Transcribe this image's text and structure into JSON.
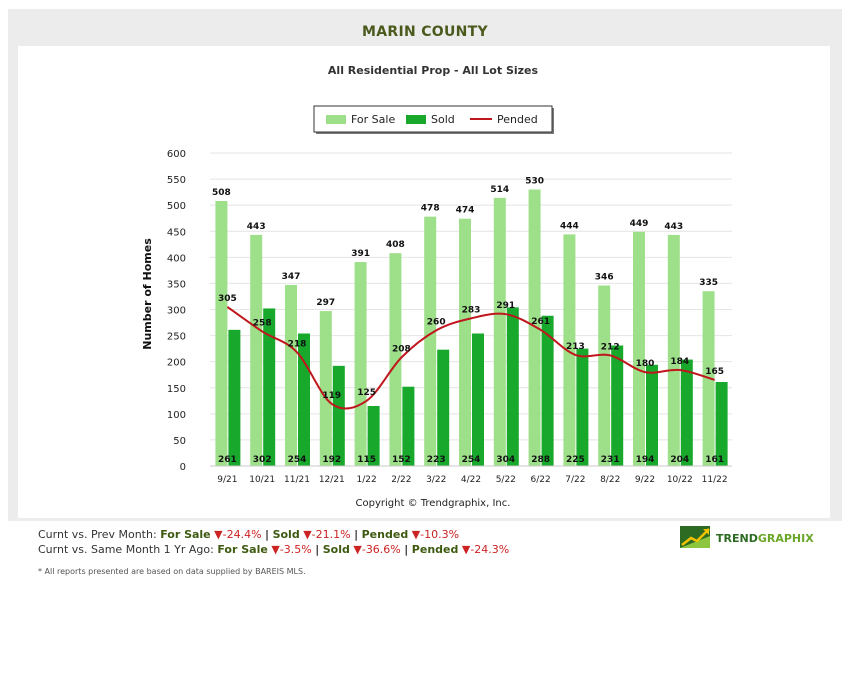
{
  "header": {
    "title": "MARIN COUNTY",
    "subtitle": "All Residential Prop - All Lot Sizes"
  },
  "colors": {
    "for_sale": "#9ee08a",
    "sold": "#17a82c",
    "pended": "#c0161d",
    "title": "#4a5a1c",
    "down": "#cc2222"
  },
  "chart_data": {
    "type": "bar",
    "title": "All Residential Prop - All Lot Sizes",
    "xlabel": "",
    "ylabel": "Number of Homes",
    "ylim": [
      0,
      600
    ],
    "yticks": [
      "0",
      "50",
      "100",
      "150",
      "200",
      "250",
      "300",
      "350",
      "400",
      "450",
      "500",
      "550",
      "600"
    ],
    "categories": [
      "9/21",
      "10/21",
      "11/21",
      "12/21",
      "1/22",
      "2/22",
      "3/22",
      "4/22",
      "5/22",
      "6/22",
      "7/22",
      "8/22",
      "9/22",
      "10/22",
      "11/22"
    ],
    "series": [
      {
        "name": "For Sale",
        "type": "bar",
        "values": [
          508,
          443,
          347,
          297,
          391,
          408,
          478,
          474,
          514,
          530,
          444,
          346,
          449,
          443,
          335
        ]
      },
      {
        "name": "Sold",
        "type": "bar",
        "values": [
          261,
          302,
          254,
          192,
          115,
          152,
          223,
          254,
          304,
          288,
          225,
          231,
          194,
          204,
          161
        ]
      },
      {
        "name": "Pended",
        "type": "line",
        "values": [
          305,
          258,
          218,
          119,
          125,
          208,
          260,
          283,
          291,
          261,
          213,
          212,
          180,
          184,
          165
        ]
      }
    ],
    "legend": [
      "For Sale",
      "Sold",
      "Pended"
    ],
    "copyright": "Copyright © Trendgraphix, Inc."
  },
  "footer": {
    "prev_month": {
      "label": "Curnt vs. Prev Month:",
      "for_sale_label": "For Sale",
      "for_sale_value": "-24.4%",
      "sold_label": "Sold",
      "sold_value": "-21.1%",
      "pended_label": "Pended",
      "pended_value": "-10.3%"
    },
    "year_ago": {
      "label": "Curnt vs. Same Month 1 Yr Ago:",
      "for_sale_label": "For Sale",
      "for_sale_value": "-3.5%",
      "sold_label": "Sold",
      "sold_value": "-36.6%",
      "pended_label": "Pended",
      "pended_value": "-24.3%"
    },
    "note": "* All reports presented are based on data supplied by BAREIS MLS.",
    "separator": "|",
    "down_arrow": "▼"
  },
  "brand": {
    "name_part1": "TREND",
    "name_part2": "GRAPHIX",
    "icon": "trendgraphix-logo-icon"
  }
}
